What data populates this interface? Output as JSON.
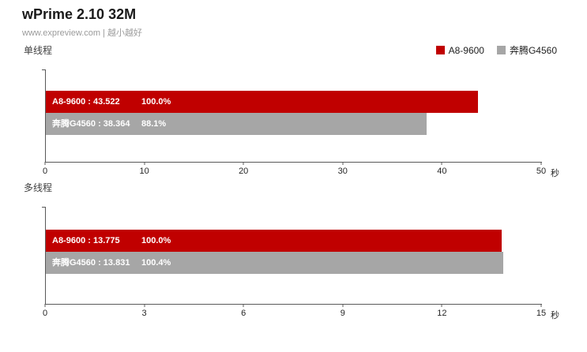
{
  "header": {
    "title": "wPrime 2.10 32M",
    "subtitle": "www.expreview.com | 越小越好"
  },
  "legend": [
    {
      "label": "A8-9600",
      "color": "#c00000"
    },
    {
      "label": "奔腾G4560",
      "color": "#a6a6a6"
    }
  ],
  "chart_data": [
    {
      "type": "bar",
      "title": "单线程",
      "unit": "秒",
      "xlim": [
        0,
        50
      ],
      "xticks": [
        0,
        10,
        20,
        30,
        40,
        50
      ],
      "series": [
        {
          "name": "A8-9600",
          "value": 43.522,
          "label": "A8-9600 : 43.522",
          "percent": "100.0%",
          "color": "#c00000"
        },
        {
          "name": "奔腾G4560",
          "value": 38.364,
          "label": "奔腾G4560 : 38.364",
          "percent": "88.1%",
          "color": "#a6a6a6"
        }
      ]
    },
    {
      "type": "bar",
      "title": "多线程",
      "unit": "秒",
      "xlim": [
        0,
        15
      ],
      "xticks": [
        0,
        3,
        6,
        9,
        12,
        15
      ],
      "series": [
        {
          "name": "A8-9600",
          "value": 13.775,
          "label": "A8-9600 : 13.775",
          "percent": "100.0%",
          "color": "#c00000"
        },
        {
          "name": "奔腾G4560",
          "value": 13.831,
          "label": "奔腾G4560 : 13.831",
          "percent": "100.4%",
          "color": "#a6a6a6"
        }
      ]
    }
  ]
}
